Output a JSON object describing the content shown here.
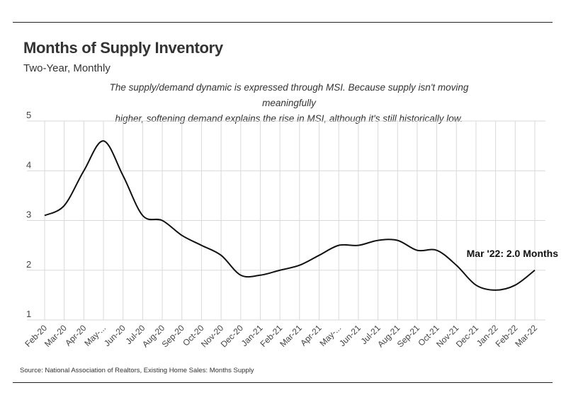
{
  "header": {
    "title": "Months of Supply Inventory",
    "subtitle": "Two-Year, Monthly",
    "note_line1": "The supply/demand dynamic is expressed through MSI. Because supply isn't moving meaningfully",
    "note_line2": "higher, softening demand explains the rise in MSI, although it's still historically low."
  },
  "footer": {
    "source": "Source:  National Association of Realtors, Existing Home Sales: Months Supply"
  },
  "chart_data": {
    "type": "line",
    "title": "Months of Supply Inventory",
    "subtitle": "Two-Year, Monthly",
    "xlabel": "",
    "ylabel": "",
    "ylim": [
      1,
      5
    ],
    "yticks": [
      1,
      2,
      3,
      4,
      5
    ],
    "grid": true,
    "categories": [
      "Feb-20",
      "Mar-20",
      "Apr-20",
      "May-...",
      "Jun-20",
      "Jul-20",
      "Aug-20",
      "Sep-20",
      "Oct-20",
      "Nov-20",
      "Dec-20",
      "Jan-21",
      "Feb-21",
      "Mar-21",
      "Apr-21",
      "May-...",
      "Jun-21",
      "Jul-21",
      "Aug-21",
      "Sep-21",
      "Oct-21",
      "Nov-21",
      "Dec-21",
      "Jan-22",
      "Feb-22",
      "Mar-22"
    ],
    "series": [
      {
        "values": [
          3.1,
          3.3,
          4.0,
          4.6,
          3.9,
          3.1,
          3.0,
          2.7,
          2.5,
          2.3,
          1.9,
          1.9,
          2.0,
          2.1,
          2.3,
          2.5,
          2.5,
          2.6,
          2.6,
          2.4,
          2.4,
          2.1,
          1.7,
          1.6,
          1.7,
          2.0
        ]
      }
    ],
    "callout": "Mar '22: 2.0 Months",
    "line_color": "#111111",
    "grid_color": "#d9d9d9"
  }
}
